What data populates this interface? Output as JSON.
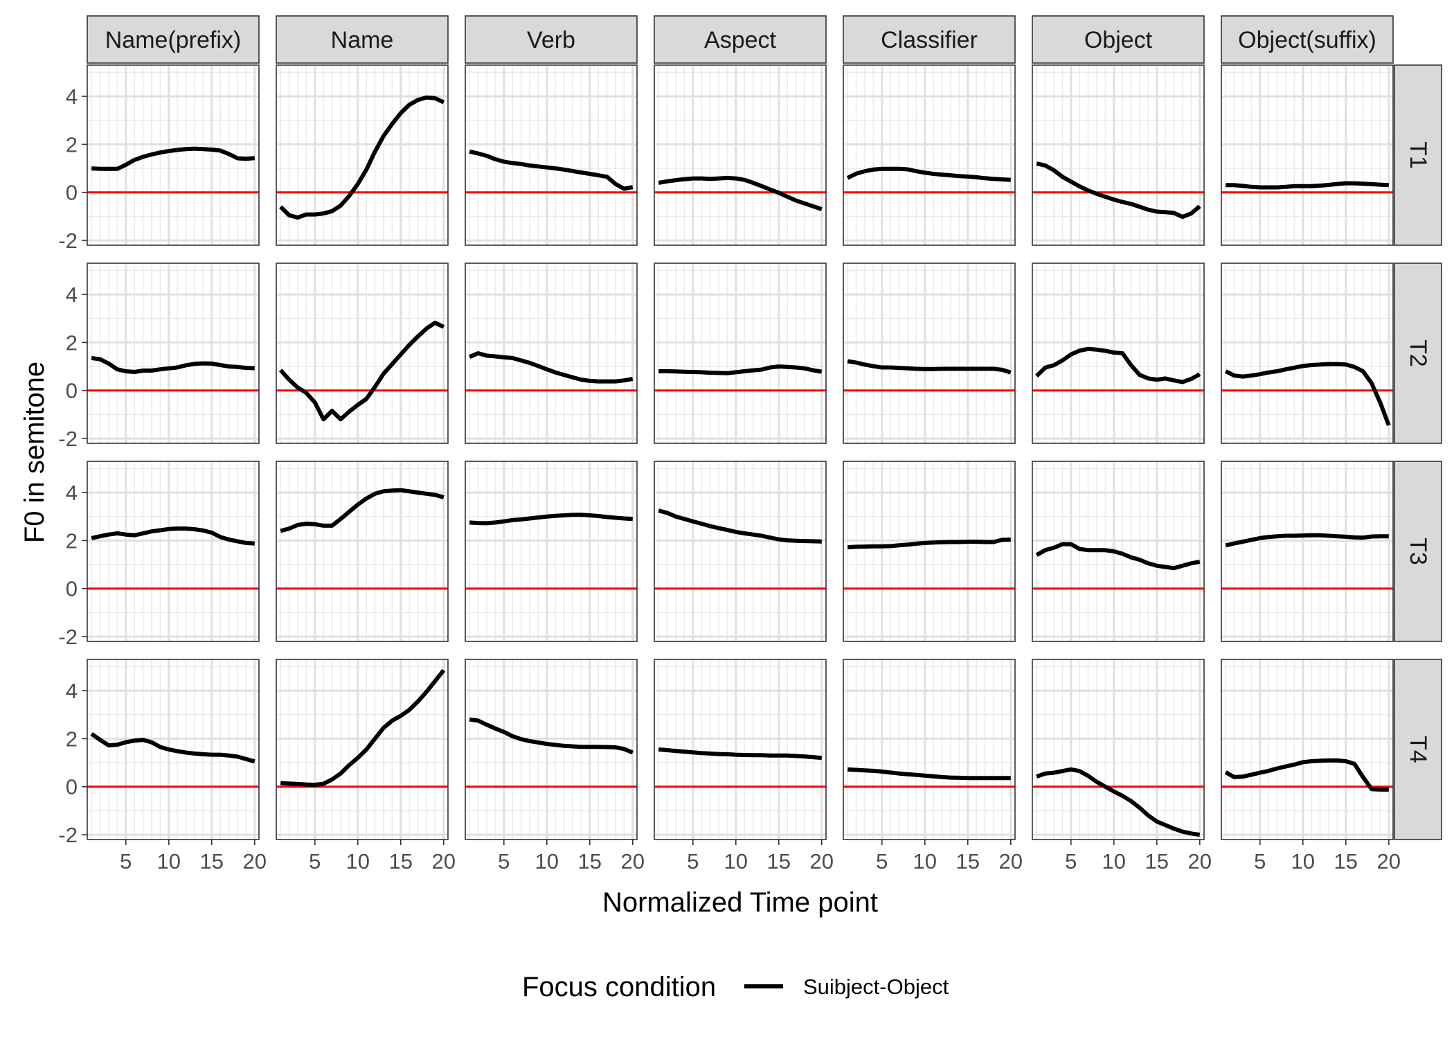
{
  "chart_data": {
    "type": "line",
    "facet_columns": [
      "Name(prefix)",
      "Name",
      "Verb",
      "Aspect",
      "Classifier",
      "Object",
      "Object(suffix)"
    ],
    "facet_rows": [
      "T1",
      "T2",
      "T3",
      "T4"
    ],
    "xlabel": "Normalized Time point",
    "ylabel": "F0 in semitone",
    "x_ticks": [
      5,
      10,
      15,
      20
    ],
    "y_ticks": [
      -2,
      0,
      2,
      4
    ],
    "xlim": [
      0.5,
      20.5
    ],
    "ylim": [
      -2.2,
      5.3
    ],
    "x": [
      1,
      2,
      3,
      4,
      5,
      6,
      7,
      8,
      9,
      10,
      11,
      12,
      13,
      14,
      15,
      16,
      17,
      18,
      19,
      20
    ],
    "reference_line": {
      "y": 0,
      "color": "#ff0000"
    },
    "series_color": "#000000",
    "grid": true,
    "legend": {
      "title": "Focus condition",
      "position": "bottom",
      "entries": [
        "Suibject-Object"
      ]
    },
    "panels": {
      "T1": {
        "Name(prefix)": [
          1.0,
          0.98,
          0.98,
          0.98,
          1.15,
          1.35,
          1.48,
          1.58,
          1.66,
          1.72,
          1.77,
          1.8,
          1.82,
          1.8,
          1.78,
          1.74,
          1.6,
          1.42,
          1.4,
          1.43
        ],
        "Name": [
          -0.6,
          -0.95,
          -1.05,
          -0.92,
          -0.92,
          -0.88,
          -0.78,
          -0.55,
          -0.15,
          0.35,
          0.95,
          1.7,
          2.35,
          2.85,
          3.3,
          3.65,
          3.85,
          3.95,
          3.92,
          3.75
        ],
        "Verb": [
          1.7,
          1.62,
          1.52,
          1.38,
          1.28,
          1.22,
          1.18,
          1.12,
          1.08,
          1.04,
          1.0,
          0.95,
          0.89,
          0.83,
          0.77,
          0.71,
          0.65,
          0.35,
          0.15,
          0.22
        ],
        "Aspect": [
          0.4,
          0.46,
          0.51,
          0.55,
          0.58,
          0.58,
          0.56,
          0.58,
          0.6,
          0.58,
          0.52,
          0.4,
          0.26,
          0.12,
          -0.02,
          -0.18,
          -0.34,
          -0.46,
          -0.58,
          -0.7
        ],
        "Classifier": [
          0.6,
          0.78,
          0.88,
          0.95,
          0.98,
          0.98,
          0.98,
          0.96,
          0.88,
          0.82,
          0.77,
          0.74,
          0.71,
          0.68,
          0.66,
          0.63,
          0.59,
          0.56,
          0.54,
          0.52
        ],
        "Object": [
          1.2,
          1.12,
          0.92,
          0.65,
          0.45,
          0.25,
          0.08,
          -0.06,
          -0.18,
          -0.3,
          -0.4,
          -0.48,
          -0.6,
          -0.72,
          -0.8,
          -0.82,
          -0.86,
          -1.02,
          -0.88,
          -0.58
        ],
        "Object(suffix)": [
          0.3,
          0.3,
          0.27,
          0.23,
          0.21,
          0.21,
          0.21,
          0.23,
          0.26,
          0.26,
          0.26,
          0.28,
          0.31,
          0.35,
          0.38,
          0.38,
          0.36,
          0.34,
          0.32,
          0.3
        ]
      },
      "T2": {
        "Name(prefix)": [
          1.35,
          1.3,
          1.12,
          0.88,
          0.8,
          0.77,
          0.83,
          0.83,
          0.88,
          0.92,
          0.96,
          1.05,
          1.11,
          1.13,
          1.12,
          1.06,
          1.0,
          0.98,
          0.94,
          0.93
        ],
        "Name": [
          0.85,
          0.45,
          0.12,
          -0.1,
          -0.5,
          -1.2,
          -0.85,
          -1.2,
          -0.88,
          -0.6,
          -0.35,
          0.15,
          0.7,
          1.1,
          1.5,
          1.9,
          2.25,
          2.58,
          2.82,
          2.65
        ],
        "Verb": [
          1.4,
          1.55,
          1.45,
          1.42,
          1.38,
          1.35,
          1.25,
          1.15,
          1.02,
          0.88,
          0.75,
          0.65,
          0.55,
          0.45,
          0.4,
          0.38,
          0.38,
          0.38,
          0.42,
          0.48
        ],
        "Aspect": [
          0.8,
          0.8,
          0.79,
          0.78,
          0.77,
          0.76,
          0.74,
          0.73,
          0.72,
          0.76,
          0.8,
          0.84,
          0.87,
          0.96,
          1.0,
          0.98,
          0.96,
          0.92,
          0.84,
          0.78
        ],
        "Classifier": [
          1.22,
          1.16,
          1.08,
          1.01,
          0.96,
          0.96,
          0.94,
          0.92,
          0.9,
          0.89,
          0.89,
          0.9,
          0.9,
          0.9,
          0.9,
          0.9,
          0.9,
          0.9,
          0.86,
          0.75
        ],
        "Object": [
          0.6,
          0.95,
          1.05,
          1.25,
          1.5,
          1.66,
          1.73,
          1.7,
          1.65,
          1.58,
          1.55,
          1.05,
          0.65,
          0.5,
          0.45,
          0.5,
          0.42,
          0.35,
          0.48,
          0.68
        ],
        "Object(suffix)": [
          0.8,
          0.62,
          0.58,
          0.62,
          0.68,
          0.75,
          0.8,
          0.88,
          0.95,
          1.02,
          1.06,
          1.08,
          1.1,
          1.1,
          1.08,
          0.98,
          0.8,
          0.3,
          -0.5,
          -1.45
        ]
      },
      "T3": {
        "Name(prefix)": [
          2.1,
          2.18,
          2.25,
          2.3,
          2.25,
          2.22,
          2.3,
          2.38,
          2.43,
          2.48,
          2.5,
          2.5,
          2.47,
          2.42,
          2.33,
          2.15,
          2.04,
          1.97,
          1.9,
          1.88
        ],
        "Name": [
          2.4,
          2.5,
          2.65,
          2.7,
          2.68,
          2.62,
          2.62,
          2.9,
          3.2,
          3.5,
          3.75,
          3.95,
          4.05,
          4.08,
          4.1,
          4.05,
          4.0,
          3.95,
          3.9,
          3.8
        ],
        "Verb": [
          2.75,
          2.73,
          2.72,
          2.75,
          2.8,
          2.85,
          2.88,
          2.92,
          2.96,
          3.0,
          3.03,
          3.05,
          3.07,
          3.07,
          3.05,
          3.02,
          2.98,
          2.95,
          2.92,
          2.9
        ],
        "Aspect": [
          3.25,
          3.15,
          3.0,
          2.9,
          2.8,
          2.7,
          2.6,
          2.52,
          2.44,
          2.36,
          2.3,
          2.25,
          2.2,
          2.12,
          2.05,
          2.01,
          1.99,
          1.98,
          1.97,
          1.96
        ],
        "Classifier": [
          1.72,
          1.74,
          1.75,
          1.76,
          1.76,
          1.77,
          1.8,
          1.83,
          1.87,
          1.9,
          1.92,
          1.93,
          1.94,
          1.94,
          1.95,
          1.95,
          1.94,
          1.94,
          2.03,
          2.04
        ],
        "Object": [
          1.4,
          1.6,
          1.7,
          1.85,
          1.85,
          1.65,
          1.6,
          1.6,
          1.6,
          1.55,
          1.45,
          1.3,
          1.2,
          1.05,
          0.95,
          0.9,
          0.85,
          0.95,
          1.05,
          1.12
        ],
        "Object(suffix)": [
          1.8,
          1.88,
          1.95,
          2.03,
          2.1,
          2.15,
          2.18,
          2.2,
          2.2,
          2.21,
          2.22,
          2.22,
          2.2,
          2.18,
          2.16,
          2.13,
          2.12,
          2.17,
          2.18,
          2.18
        ]
      },
      "T4": {
        "Name(prefix)": [
          2.2,
          1.95,
          1.72,
          1.75,
          1.85,
          1.92,
          1.95,
          1.85,
          1.65,
          1.55,
          1.48,
          1.42,
          1.38,
          1.35,
          1.33,
          1.33,
          1.3,
          1.25,
          1.15,
          1.05
        ],
        "Name": [
          0.15,
          0.13,
          0.11,
          0.09,
          0.08,
          0.12,
          0.3,
          0.55,
          0.9,
          1.2,
          1.55,
          2.0,
          2.45,
          2.75,
          2.95,
          3.2,
          3.55,
          3.95,
          4.4,
          4.85
        ],
        "Verb": [
          2.8,
          2.75,
          2.58,
          2.42,
          2.28,
          2.1,
          1.98,
          1.9,
          1.84,
          1.78,
          1.74,
          1.7,
          1.68,
          1.66,
          1.66,
          1.66,
          1.65,
          1.64,
          1.57,
          1.42
        ],
        "Aspect": [
          1.55,
          1.52,
          1.49,
          1.46,
          1.43,
          1.4,
          1.38,
          1.36,
          1.35,
          1.33,
          1.32,
          1.31,
          1.31,
          1.3,
          1.3,
          1.3,
          1.28,
          1.26,
          1.23,
          1.2
        ],
        "Classifier": [
          0.72,
          0.7,
          0.68,
          0.66,
          0.63,
          0.59,
          0.55,
          0.52,
          0.49,
          0.46,
          0.43,
          0.4,
          0.38,
          0.37,
          0.36,
          0.36,
          0.36,
          0.36,
          0.36,
          0.36
        ],
        "Object": [
          0.42,
          0.55,
          0.58,
          0.65,
          0.72,
          0.65,
          0.45,
          0.2,
          0.0,
          -0.2,
          -0.38,
          -0.6,
          -0.88,
          -1.2,
          -1.45,
          -1.6,
          -1.75,
          -1.87,
          -1.95,
          -2.0
        ],
        "Object(suffix)": [
          0.6,
          0.4,
          0.42,
          0.5,
          0.58,
          0.66,
          0.76,
          0.84,
          0.92,
          1.02,
          1.06,
          1.08,
          1.09,
          1.09,
          1.06,
          0.95,
          0.4,
          -0.1,
          -0.12,
          -0.12
        ]
      }
    }
  }
}
